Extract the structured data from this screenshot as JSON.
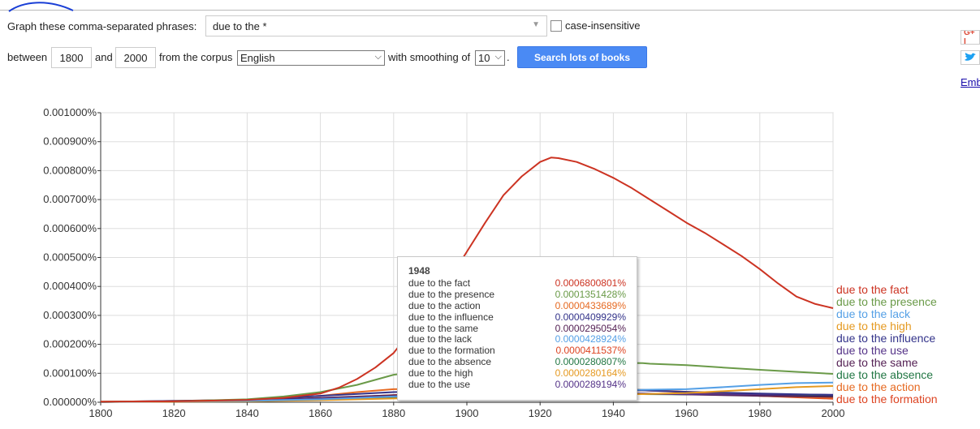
{
  "controls": {
    "phrase_label": "Graph these comma-separated phrases:",
    "phrase_value": "due to the *",
    "case_label": "case-insensitive",
    "between_label": "between",
    "start_year": "1800",
    "and_label": "and",
    "end_year": "2000",
    "corpus_label": "from the corpus",
    "corpus_value": "English",
    "smoothing_label": "with smoothing of",
    "smoothing_value": "10",
    "period": ".",
    "search_button": "Search lots of books"
  },
  "side": {
    "gplus": "G+ I",
    "twitter": "twitter-bird-icon",
    "embed": "Emb"
  },
  "colors": {
    "fact": "#cc3322",
    "presence": "#6a9a48",
    "lack": "#55a0e6",
    "high": "#e59a22",
    "influence": "#33338a",
    "use": "#553388",
    "same": "#552255",
    "absence": "#227744",
    "action": "#e66a22",
    "formation": "#dd4422"
  },
  "tooltip": {
    "year": "1948",
    "rows": [
      {
        "name": "due to the fact",
        "value": "0.0006800801%",
        "color": "#cc3322"
      },
      {
        "name": "due to the presence",
        "value": "0.0001351428%",
        "color": "#6a9a48"
      },
      {
        "name": "due to the action",
        "value": "0.0000433689%",
        "color": "#e66a22"
      },
      {
        "name": "due to the influence",
        "value": "0.0000409929%",
        "color": "#33338a"
      },
      {
        "name": "due to the same",
        "value": "0.0000295054%",
        "color": "#552255"
      },
      {
        "name": "due to the lack",
        "value": "0.0000428924%",
        "color": "#55a0e6"
      },
      {
        "name": "due to the formation",
        "value": "0.0000411537%",
        "color": "#dd4422"
      },
      {
        "name": "due to the absence",
        "value": "0.0000280807%",
        "color": "#227744"
      },
      {
        "name": "due to the high",
        "value": "0.0000280164%",
        "color": "#e59a22"
      },
      {
        "name": "due to the use",
        "value": "0.0000289194%",
        "color": "#553388"
      }
    ]
  },
  "chart_data": {
    "type": "line",
    "title": "",
    "xlabel": "",
    "ylabel": "",
    "xlim": [
      1800,
      2000
    ],
    "ylim": [
      0,
      0.001
    ],
    "x_ticks": [
      "1800",
      "1820",
      "1840",
      "1860",
      "1880",
      "1900",
      "1920",
      "1940",
      "1960",
      "1980",
      "2000"
    ],
    "y_ticks": [
      "0.000000%",
      "0.000100%",
      "0.000200%",
      "0.000300%",
      "0.000400%",
      "0.000500%",
      "0.000600%",
      "0.000700%",
      "0.000800%",
      "0.000900%",
      "0.001000%"
    ],
    "grid": true,
    "legend": "right-end labels",
    "series": [
      {
        "name": "due to the fact",
        "key": "fact",
        "x": [
          1800,
          1820,
          1840,
          1850,
          1860,
          1865,
          1870,
          1875,
          1880,
          1885,
          1890,
          1895,
          1900,
          1905,
          1910,
          1915,
          1920,
          1923,
          1925,
          1930,
          1935,
          1940,
          1945,
          1950,
          1955,
          1960,
          1965,
          1970,
          1975,
          1980,
          1985,
          1990,
          1995,
          2000
        ],
        "y": [
          2e-06,
          3e-06,
          8e-06,
          1.5e-05,
          3e-05,
          5e-05,
          8e-05,
          0.00012,
          0.00017,
          0.00025,
          0.00033,
          0.00042,
          0.00052,
          0.00062,
          0.000715,
          0.00078,
          0.00083,
          0.000845,
          0.000843,
          0.00083,
          0.000805,
          0.000775,
          0.00074,
          0.0007,
          0.00066,
          0.00062,
          0.000585,
          0.000545,
          0.000505,
          0.00046,
          0.00041,
          0.000365,
          0.00034,
          0.000325
        ]
      },
      {
        "name": "due to the presence",
        "key": "presence",
        "x": [
          1800,
          1820,
          1840,
          1850,
          1860,
          1870,
          1880,
          1890,
          1900,
          1910,
          1920,
          1930,
          1940,
          1948,
          1950,
          1960,
          1970,
          1980,
          1990,
          2000
        ],
        "y": [
          2e-06,
          3e-06,
          1e-05,
          2e-05,
          3.5e-05,
          6e-05,
          9.5e-05,
          0.00011,
          0.00012,
          0.000128,
          0.000133,
          0.000135,
          0.000136,
          0.000135,
          0.000133,
          0.000128,
          0.00012,
          0.000112,
          0.000105,
          9.8e-05
        ]
      },
      {
        "name": "due to the lack",
        "key": "lack",
        "x": [
          1800,
          1840,
          1860,
          1880,
          1900,
          1920,
          1940,
          1948,
          1960,
          1970,
          1980,
          1990,
          2000
        ],
        "y": [
          1e-06,
          5e-06,
          1e-05,
          2e-05,
          3e-05,
          3.8e-05,
          4.2e-05,
          4.3e-05,
          4.5e-05,
          5.2e-05,
          6e-05,
          6.6e-05,
          6.8e-05
        ]
      },
      {
        "name": "due to the high",
        "key": "high",
        "x": [
          1800,
          1840,
          1860,
          1880,
          1900,
          1920,
          1940,
          1948,
          1960,
          1970,
          1980,
          1990,
          2000
        ],
        "y": [
          1e-06,
          3e-06,
          7e-06,
          1.3e-05,
          2e-05,
          2.5e-05,
          2.8e-05,
          2.8e-05,
          3.2e-05,
          3.8e-05,
          4.5e-05,
          5.2e-05,
          5.6e-05
        ]
      },
      {
        "name": "due to the influence",
        "key": "influence",
        "x": [
          1800,
          1840,
          1860,
          1880,
          1900,
          1920,
          1940,
          1948,
          1960,
          1980,
          2000
        ],
        "y": [
          1e-06,
          8e-06,
          2.2e-05,
          3.5e-05,
          4e-05,
          4.2e-05,
          4.2e-05,
          4.1e-05,
          3.6e-05,
          3e-05,
          2.5e-05
        ]
      },
      {
        "name": "due to the use",
        "key": "use",
        "x": [
          1800,
          1840,
          1860,
          1880,
          1900,
          1920,
          1940,
          1948,
          1960,
          1980,
          2000
        ],
        "y": [
          1e-06,
          5e-06,
          1.2e-05,
          2e-05,
          2.5e-05,
          2.8e-05,
          2.9e-05,
          2.9e-05,
          2.8e-05,
          2.7e-05,
          2.6e-05
        ]
      },
      {
        "name": "due to the same",
        "key": "same",
        "x": [
          1800,
          1840,
          1860,
          1880,
          1900,
          1920,
          1940,
          1948,
          1960,
          1980,
          2000
        ],
        "y": [
          1e-06,
          6e-06,
          1.5e-05,
          2.4e-05,
          2.8e-05,
          3e-05,
          3e-05,
          3e-05,
          2.7e-05,
          2.2e-05,
          1.9e-05
        ]
      },
      {
        "name": "due to the absence",
        "key": "absence",
        "x": [
          1800,
          1840,
          1860,
          1880,
          1900,
          1920,
          1940,
          1948,
          1960,
          1980,
          2000
        ],
        "y": [
          1e-06,
          4e-06,
          1e-05,
          1.8e-05,
          2.3e-05,
          2.6e-05,
          2.8e-05,
          2.8e-05,
          2.7e-05,
          2.5e-05,
          2.3e-05
        ]
      },
      {
        "name": "due to the action",
        "key": "action",
        "x": [
          1800,
          1840,
          1860,
          1870,
          1880,
          1900,
          1920,
          1940,
          1948,
          1960,
          1980,
          2000
        ],
        "y": [
          1e-06,
          8e-06,
          2.2e-05,
          3.5e-05,
          4.5e-05,
          4.8e-05,
          4.6e-05,
          4.4e-05,
          4.3e-05,
          3.6e-05,
          2.2e-05,
          1.5e-05
        ]
      },
      {
        "name": "due to the formation",
        "key": "formation",
        "x": [
          1800,
          1840,
          1860,
          1880,
          1900,
          1920,
          1940,
          1948,
          1960,
          1980,
          2000
        ],
        "y": [
          1e-06,
          4e-06,
          1.2e-05,
          2.5e-05,
          3.5e-05,
          4e-05,
          4.2e-05,
          4.1e-05,
          3.5e-05,
          2.2e-05,
          1.2e-05
        ]
      }
    ]
  }
}
